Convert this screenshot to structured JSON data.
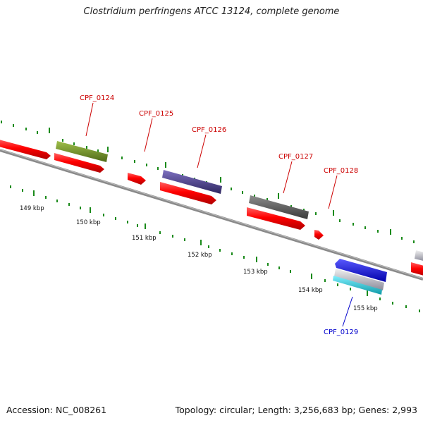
{
  "title": "Clostridium perfringens ATCC 13124, complete genome",
  "footer": {
    "accession": "Accession: NC_008261",
    "summary": "Topology: circular; Length: 3,256,683 bp; Genes: 2,993"
  },
  "scale": {
    "tick_labels": [
      "149 kbp",
      "150 kbp",
      "151 kbp",
      "152 kbp",
      "153 kbp",
      "154 kbp",
      "155 kbp"
    ]
  },
  "genes": {
    "labels": [
      {
        "text": "CPF_0124",
        "color": "#cc0000"
      },
      {
        "text": "CPF_0125",
        "color": "#cc0000"
      },
      {
        "text": "CPF_0126",
        "color": "#cc0000"
      },
      {
        "text": "CPF_0127",
        "color": "#cc0000"
      },
      {
        "text": "CPF_0128",
        "color": "#cc0000"
      },
      {
        "text": "CPF_0129",
        "color": "#0000cc"
      }
    ]
  },
  "colors": {
    "cds": "#ff0000",
    "gene_0124": "#6b8e23",
    "gene_0126": "#4b3f8a",
    "gene_0127": "#555555",
    "gene_0129": "#0000ee",
    "gene_0129_rna": "#20c0d0",
    "ticks": "#1a8a1a",
    "backbone": "#8a8a8a"
  }
}
